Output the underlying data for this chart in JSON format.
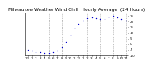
{
  "title": "Milwaukee Weather Wind Chill  Hourly Average  (24 Hours)",
  "title_fontsize": 4.2,
  "x_hours": [
    0,
    1,
    2,
    3,
    4,
    5,
    6,
    7,
    8,
    9,
    10,
    11,
    12,
    13,
    14,
    15,
    16,
    17,
    18,
    19,
    20,
    21,
    22,
    23
  ],
  "y_values": [
    -5,
    -6,
    -7,
    -7.5,
    -8,
    -8,
    -7.5,
    -6,
    -3,
    2,
    8,
    14,
    18,
    21,
    23,
    24,
    23,
    22,
    22,
    24,
    25,
    24,
    22,
    21
  ],
  "line_color": "#0000cc",
  "marker": ".",
  "marker_size": 2.0,
  "bg_color": "#ffffff",
  "grid_color": "#888888",
  "ylim": [
    -10,
    28
  ],
  "xlim": [
    -0.5,
    23.5
  ],
  "tick_label_fontsize": 3.0,
  "ylabel_fontsize": 3.0,
  "grid_positions": [
    2,
    5,
    8,
    11,
    14,
    17,
    20,
    23
  ],
  "x_tick_labels": [
    "12",
    "1",
    "2",
    "3",
    "4",
    "5",
    "6",
    "7",
    "8",
    "9",
    "10",
    "11",
    "12",
    "1",
    "2",
    "3",
    "4",
    "5",
    "6",
    "7",
    "8",
    "9",
    "10",
    "11"
  ],
  "y_ticks": [
    -10,
    -5,
    0,
    5,
    10,
    15,
    20,
    25
  ],
  "right_y_labels": [
    "-10",
    "-5",
    "0",
    "5",
    "10",
    "15",
    "20",
    "25"
  ]
}
